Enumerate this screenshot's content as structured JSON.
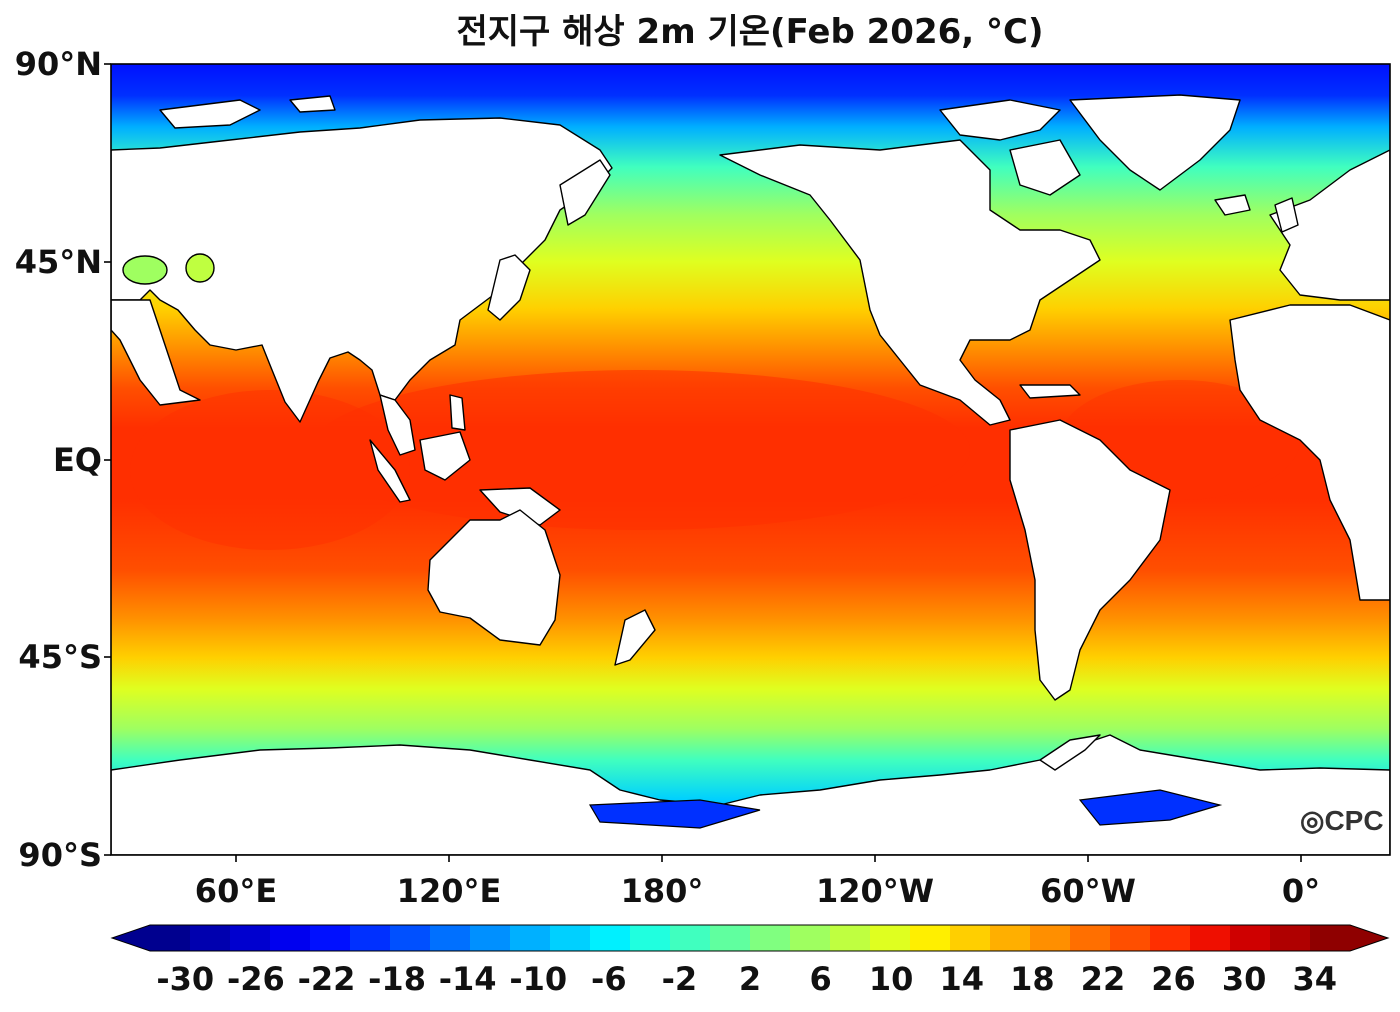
{
  "title": "전지구 해상 2m 기온(Feb 2026, °C)",
  "lat_labels": [
    "90°N",
    "45°N",
    "EQ",
    "45°S",
    "90°S"
  ],
  "lon_labels": [
    "60°E",
    "120°E",
    "180°",
    "120°W",
    "60°W",
    "0°"
  ],
  "colorbar": {
    "tick_labels": [
      "-30",
      "-26",
      "-22",
      "-18",
      "-14",
      "-10",
      "-6",
      "-2",
      "2",
      "6",
      "10",
      "14",
      "18",
      "22",
      "26",
      "30",
      "34"
    ],
    "min": -32,
    "max": 36,
    "step": 2,
    "extend": "both",
    "colormap": "jet",
    "colors": [
      "#00008f",
      "#0000af",
      "#0000cf",
      "#0000ef",
      "#0010ff",
      "#0030ff",
      "#0050ff",
      "#0070ff",
      "#0090ff",
      "#00b0ff",
      "#00d0ff",
      "#00f0ff",
      "#20ffdf",
      "#40ffbf",
      "#60ff9f",
      "#80ff80",
      "#9fff60",
      "#bfff40",
      "#dfff20",
      "#ffef00",
      "#ffcf00",
      "#ffaf00",
      "#ff8f00",
      "#ff6f00",
      "#ff4f00",
      "#ff2f00",
      "#ef0f00",
      "#cf0000",
      "#af0000",
      "#8f0000"
    ]
  },
  "watermark": "CPC",
  "map": {
    "projection": "plate carree",
    "center_longitude": "160°E",
    "variable": "2m air temperature over ocean",
    "period": "Feb 2026",
    "units": "°C"
  }
}
